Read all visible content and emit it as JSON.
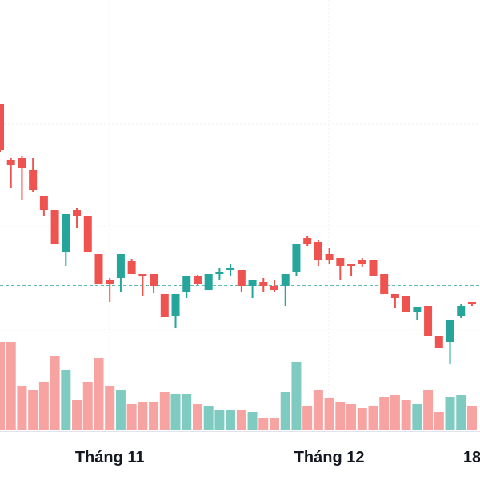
{
  "chart_data": {
    "type": "candlestick",
    "categories": [
      null,
      null,
      null,
      null,
      null,
      null,
      null,
      null,
      null,
      null,
      "Tháng 11",
      null,
      null,
      null,
      null,
      null,
      null,
      null,
      null,
      null,
      null,
      null,
      null,
      null,
      null,
      null,
      null,
      null,
      null,
      null,
      "Tháng 12",
      null,
      null,
      null,
      null,
      null,
      null,
      null,
      null,
      null,
      null,
      null,
      null,
      "18"
    ],
    "open": [
      470,
      400,
      402,
      388,
      355,
      338,
      285,
      338,
      330,
      282,
      250,
      252,
      274,
      257,
      257,
      232,
      205,
      235,
      255,
      237,
      258,
      262,
      263,
      242,
      248,
      243,
      242,
      260,
      302,
      297,
      282,
      277,
      270,
      275,
      275,
      258,
      233,
      230,
      210,
      218,
      180,
      172,
      205,
      222
    ],
    "high": [
      470,
      403,
      405,
      403,
      355,
      338,
      332,
      340,
      330,
      282,
      252,
      282,
      276,
      258,
      257,
      232,
      232,
      255,
      256,
      258,
      265,
      270,
      263,
      250,
      252,
      250,
      257,
      295,
      305,
      300,
      290,
      277,
      270,
      278,
      275,
      258,
      233,
      230,
      216,
      218,
      180,
      200,
      220,
      222
    ],
    "low": [
      410,
      365,
      350,
      360,
      330,
      295,
      268,
      315,
      285,
      245,
      222,
      235,
      258,
      230,
      234,
      204,
      190,
      228,
      244,
      237,
      250,
      255,
      235,
      228,
      235,
      235,
      218,
      255,
      292,
      267,
      270,
      250,
      255,
      266,
      255,
      233,
      215,
      210,
      200,
      180,
      165,
      145,
      202,
      218
    ],
    "close": [
      412,
      394,
      390,
      363,
      338,
      295,
      332,
      330,
      285,
      245,
      245,
      282,
      258,
      255,
      242,
      204,
      232,
      255,
      245,
      257,
      260,
      265,
      242,
      250,
      243,
      238,
      257,
      295,
      295,
      275,
      275,
      268,
      268,
      270,
      255,
      233,
      227,
      210,
      216,
      180,
      165,
      200,
      218,
      220
    ],
    "volume": [
      109,
      109,
      54,
      49,
      59,
      92,
      74,
      37,
      59,
      90,
      54,
      49,
      32,
      35,
      35,
      47,
      45,
      45,
      32,
      29,
      24,
      24,
      25,
      22,
      15,
      15,
      47,
      84,
      29,
      49,
      40,
      35,
      32,
      27,
      30,
      41,
      43,
      37,
      32,
      49,
      22,
      41,
      43,
      30
    ],
    "ylim": [
      0,
      600
    ],
    "y2lim": [
      0,
      537
    ],
    "price_line": 243,
    "up_color": "#26a69a",
    "down_color": "#ef5350",
    "up_volume_color": "#7fcbc1",
    "down_volume_color": "#f7a3a2"
  }
}
